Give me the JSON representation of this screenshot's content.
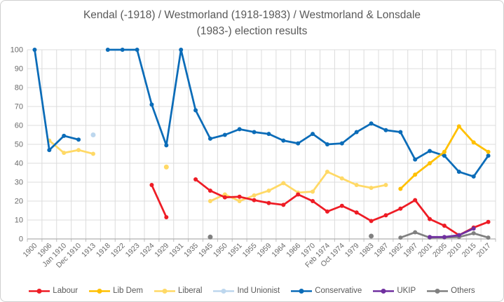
{
  "chart": {
    "title_line1": "Kendal (-1918) / Westmorland (1918-1983) / Westmorland & Lonsdale",
    "title_line2": "(1983-) election results"
  },
  "chart_data": {
    "type": "line",
    "title": "Kendal (-1918) / Westmorland (1918-1983) / Westmorland & Lonsdale (1983-) election results",
    "ylabel": "",
    "xlabel": "",
    "ylim": [
      0,
      100
    ],
    "y_ticks": [
      0,
      10,
      20,
      30,
      40,
      50,
      60,
      70,
      80,
      90,
      100
    ],
    "grid": true,
    "legend_position": "bottom",
    "categories": [
      "1900",
      "1906",
      "Jan 1910",
      "Dec 1910",
      "1913",
      "1918",
      "1922",
      "1923",
      "1924",
      "1929",
      "1931",
      "1935",
      "1945",
      "1950",
      "1951",
      "1955",
      "1959",
      "1964",
      "1966",
      "1970",
      "Feb 1974",
      "Oct 1974",
      "1979",
      "1983",
      "1987",
      "1992",
      "1997",
      "2001",
      "2005",
      "2010",
      "2015",
      "2017"
    ],
    "series": [
      {
        "name": "Labour",
        "color": "#ee1c25",
        "values": [
          null,
          null,
          null,
          null,
          null,
          null,
          null,
          null,
          28.5,
          11.5,
          null,
          31.5,
          25.5,
          22,
          22.3,
          20.5,
          19,
          18,
          23.5,
          20,
          14.5,
          17.5,
          14,
          9.5,
          12.5,
          16,
          20.5,
          10.5,
          7,
          2,
          6,
          9
        ]
      },
      {
        "name": "Lib Dem",
        "color": "#ffc000",
        "values": [
          null,
          null,
          null,
          null,
          null,
          null,
          null,
          null,
          null,
          null,
          null,
          null,
          null,
          null,
          null,
          null,
          null,
          null,
          null,
          null,
          null,
          null,
          null,
          null,
          null,
          26.5,
          34,
          40,
          46,
          59.5,
          51,
          46
        ]
      },
      {
        "name": "Liberal",
        "color": "#ffd966",
        "values": [
          null,
          52,
          45.5,
          47,
          45,
          null,
          null,
          null,
          null,
          38,
          null,
          null,
          20,
          23.5,
          20,
          23,
          25.5,
          29.5,
          24.5,
          25,
          35.5,
          32,
          28.5,
          27,
          28.5,
          null,
          null,
          null,
          null,
          null,
          null,
          null
        ]
      },
      {
        "name": "Ind Unionist",
        "color": "#bdd7ee",
        "values": [
          null,
          null,
          null,
          null,
          55,
          null,
          null,
          null,
          null,
          null,
          null,
          null,
          null,
          null,
          null,
          null,
          null,
          null,
          null,
          null,
          null,
          null,
          null,
          null,
          null,
          null,
          null,
          null,
          null,
          null,
          null,
          null
        ]
      },
      {
        "name": "Conservative",
        "color": "#0b6cb8",
        "values": [
          100,
          47,
          54.5,
          52.5,
          null,
          100,
          100,
          100,
          71,
          49.5,
          100,
          68,
          53,
          55,
          58,
          56.5,
          55.5,
          52,
          50.5,
          55.5,
          50,
          50.5,
          56.5,
          61,
          57.5,
          56.5,
          42,
          46.5,
          44,
          35.5,
          33,
          44
        ]
      },
      {
        "name": "UKIP",
        "color": "#7030a0",
        "values": [
          null,
          null,
          null,
          null,
          null,
          null,
          null,
          null,
          null,
          null,
          null,
          null,
          null,
          null,
          null,
          null,
          null,
          null,
          null,
          null,
          null,
          null,
          null,
          null,
          null,
          null,
          null,
          1,
          1,
          2,
          5.5,
          null
        ]
      },
      {
        "name": "Others",
        "color": "#808080",
        "values": [
          null,
          null,
          null,
          null,
          null,
          null,
          null,
          null,
          null,
          null,
          null,
          null,
          1,
          null,
          null,
          null,
          null,
          null,
          null,
          null,
          null,
          null,
          null,
          1.5,
          null,
          0.7,
          3.5,
          0.7,
          0.8,
          1,
          3,
          0.7
        ]
      }
    ],
    "draw_order": [
      "Liberal",
      "Ind Unionist",
      "Conservative",
      "Labour",
      "Others",
      "UKIP",
      "Lib Dem"
    ]
  }
}
